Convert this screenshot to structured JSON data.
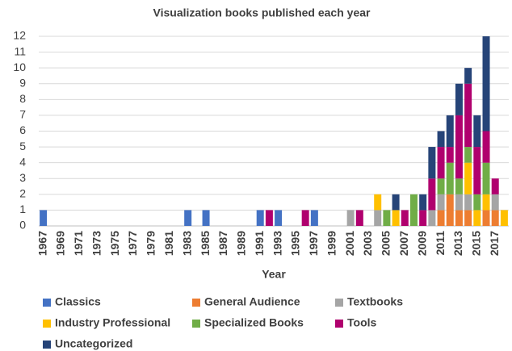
{
  "chart_data": {
    "type": "stacked_bar",
    "title": "Visualization books published each year",
    "x_label": "Year",
    "categories": [
      "1967",
      null,
      "1969",
      null,
      "1971",
      null,
      "1973",
      null,
      "1975",
      null,
      "1977",
      null,
      "1979",
      null,
      "1981",
      null,
      "1983",
      null,
      "1985",
      null,
      "1987",
      null,
      "1989",
      null,
      "1991",
      null,
      "1993",
      null,
      "1995",
      null,
      "1997",
      null,
      "1999",
      null,
      "2001",
      null,
      "2003",
      null,
      "2005",
      null,
      "2007",
      null,
      "2009",
      null,
      "2011",
      null,
      "2013",
      null,
      "2015",
      null,
      "2017",
      null
    ],
    "series": [
      {
        "name": "Classics",
        "color": "#4472c4",
        "values": [
          1,
          0,
          0,
          0,
          0,
          0,
          0,
          0,
          0,
          0,
          0,
          0,
          0,
          0,
          0,
          0,
          1,
          0,
          1,
          0,
          0,
          0,
          0,
          0,
          1,
          0,
          1,
          0,
          0,
          0,
          1,
          0,
          0,
          0,
          0,
          0,
          0,
          0,
          0,
          0,
          0,
          0,
          0,
          0,
          0,
          0,
          0,
          0,
          0,
          0,
          0,
          0
        ]
      },
      {
        "name": "General Audience",
        "color": "#ed7d31",
        "values": [
          0,
          0,
          0,
          0,
          0,
          0,
          0,
          0,
          0,
          0,
          0,
          0,
          0,
          0,
          0,
          0,
          0,
          0,
          0,
          0,
          0,
          0,
          0,
          0,
          0,
          0,
          0,
          0,
          0,
          0,
          0,
          0,
          0,
          0,
          0,
          0,
          0,
          0,
          0,
          0,
          0,
          0,
          0,
          0,
          1,
          2,
          1,
          1,
          0,
          1,
          1,
          0
        ]
      },
      {
        "name": "Textbooks",
        "color": "#a5a5a5",
        "values": [
          0,
          0,
          0,
          0,
          0,
          0,
          0,
          0,
          0,
          0,
          0,
          0,
          0,
          0,
          0,
          0,
          0,
          0,
          0,
          0,
          0,
          0,
          0,
          0,
          0,
          0,
          0,
          0,
          0,
          0,
          0,
          0,
          0,
          0,
          1,
          0,
          0,
          1,
          0,
          0,
          0,
          0,
          0,
          1,
          1,
          0,
          1,
          1,
          0,
          0,
          1,
          0
        ]
      },
      {
        "name": "Industry Professional",
        "color": "#ffc000",
        "values": [
          0,
          0,
          0,
          0,
          0,
          0,
          0,
          0,
          0,
          0,
          0,
          0,
          0,
          0,
          0,
          0,
          0,
          0,
          0,
          0,
          0,
          0,
          0,
          0,
          0,
          0,
          0,
          0,
          0,
          0,
          0,
          0,
          0,
          0,
          0,
          0,
          0,
          1,
          0,
          1,
          0,
          0,
          0,
          0,
          0,
          0,
          0,
          2,
          1,
          1,
          0,
          1
        ]
      },
      {
        "name": "Specialized Books",
        "color": "#70ad47",
        "values": [
          0,
          0,
          0,
          0,
          0,
          0,
          0,
          0,
          0,
          0,
          0,
          0,
          0,
          0,
          0,
          0,
          0,
          0,
          0,
          0,
          0,
          0,
          0,
          0,
          0,
          0,
          0,
          0,
          0,
          0,
          0,
          0,
          0,
          0,
          0,
          0,
          0,
          0,
          1,
          0,
          0,
          2,
          0,
          0,
          1,
          2,
          1,
          1,
          1,
          2,
          0,
          0
        ]
      },
      {
        "name": "Tools",
        "color": "#b0006e",
        "values": [
          0,
          0,
          0,
          0,
          0,
          0,
          0,
          0,
          0,
          0,
          0,
          0,
          0,
          0,
          0,
          0,
          0,
          0,
          0,
          0,
          0,
          0,
          0,
          0,
          0,
          1,
          0,
          0,
          0,
          1,
          0,
          0,
          0,
          0,
          0,
          1,
          0,
          0,
          0,
          0,
          1,
          0,
          1,
          2,
          2,
          1,
          4,
          4,
          3,
          2,
          1,
          0
        ]
      },
      {
        "name": "Uncategorized",
        "color": "#264478",
        "values": [
          0,
          0,
          0,
          0,
          0,
          0,
          0,
          0,
          0,
          0,
          0,
          0,
          0,
          0,
          0,
          0,
          0,
          0,
          0,
          0,
          0,
          0,
          0,
          0,
          0,
          0,
          0,
          0,
          0,
          0,
          0,
          0,
          0,
          0,
          0,
          0,
          0,
          0,
          0,
          1,
          0,
          0,
          1,
          2,
          1,
          2,
          2,
          1,
          2,
          6,
          0,
          0
        ]
      }
    ],
    "ylim": [
      0,
      12
    ],
    "yticks": [
      0,
      1,
      2,
      3,
      4,
      5,
      6,
      7,
      8,
      9,
      10,
      11,
      12
    ],
    "grid": true,
    "legend": "bottom"
  }
}
